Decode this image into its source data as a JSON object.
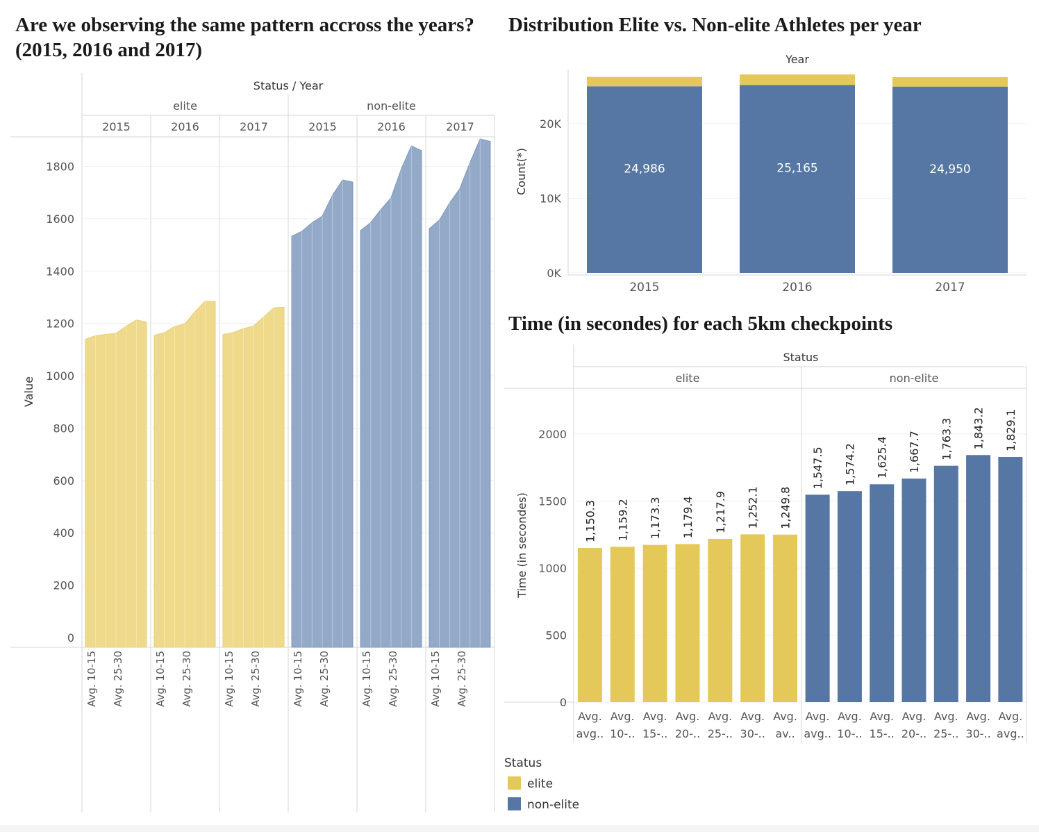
{
  "titles": {
    "area": "Are we observing the same pattern accross the years? (2015, 2016 and 2017)",
    "stacked": "Distribution Elite vs. Non-elite Athletes per year",
    "bars": "Time (in secondes) for each 5km checkpoints"
  },
  "colors": {
    "elite": "#e4c95a",
    "non_elite": "#5677a4",
    "elite_area": "#efd98a",
    "non_elite_area": "#93a9c8"
  },
  "legend": {
    "title": "Status",
    "items": [
      {
        "label": "elite",
        "color": "#e4c95a"
      },
      {
        "label": "non-elite",
        "color": "#5677a4"
      }
    ]
  },
  "chart_data": [
    {
      "type": "area",
      "header": "Status / Year",
      "ylabel": "Value",
      "ylim": [
        0,
        1950
      ],
      "yticks": [
        0,
        200,
        400,
        600,
        800,
        1000,
        1200,
        1400,
        1600,
        1800
      ],
      "x_tick_labels": [
        "Avg. 10-15",
        "Avg. 25-30"
      ],
      "panels": [
        {
          "status": "elite",
          "year": "2015",
          "values": [
            1140,
            1153,
            1158,
            1162,
            1190,
            1213,
            1205
          ]
        },
        {
          "status": "elite",
          "year": "2016",
          "values": [
            1155,
            1165,
            1188,
            1198,
            1245,
            1285,
            1285
          ]
        },
        {
          "status": "elite",
          "year": "2017",
          "values": [
            1158,
            1165,
            1180,
            1190,
            1225,
            1260,
            1262
          ]
        },
        {
          "status": "non-elite",
          "year": "2015",
          "values": [
            1533,
            1552,
            1585,
            1610,
            1690,
            1748,
            1740
          ]
        },
        {
          "status": "non-elite",
          "year": "2016",
          "values": [
            1555,
            1585,
            1635,
            1680,
            1790,
            1878,
            1860
          ]
        },
        {
          "status": "non-elite",
          "year": "2017",
          "values": [
            1562,
            1595,
            1660,
            1715,
            1815,
            1905,
            1895
          ]
        }
      ]
    },
    {
      "type": "bar",
      "stacked": true,
      "header": "Year",
      "ylabel": "Count(*)",
      "categories": [
        "2015",
        "2016",
        "2017"
      ],
      "ylim": [
        0,
        26500
      ],
      "yticks": [
        0,
        10000,
        20000
      ],
      "ytick_labels": [
        "0K",
        "10K",
        "20K"
      ],
      "series": [
        {
          "name": "non-elite",
          "values": [
            24986,
            25165,
            24950
          ],
          "labels": [
            "24,986",
            "25,165",
            "24,950"
          ]
        },
        {
          "name": "elite",
          "values": [
            1260,
            1410,
            1270
          ]
        }
      ]
    },
    {
      "type": "bar",
      "header": "Status",
      "ylabel": "Time (in secondes)",
      "ylim": [
        0,
        2350
      ],
      "yticks": [
        0,
        500,
        1000,
        1500,
        2000
      ],
      "groups": [
        {
          "status": "elite",
          "categories": [
            "Avg. avg..",
            "Avg. 10-..",
            "Avg. 15-..",
            "Avg. 20-..",
            "Avg. 25-..",
            "Avg. 30-..",
            "Avg. av.."
          ],
          "values": [
            1150.3,
            1159.2,
            1173.3,
            1179.4,
            1217.9,
            1252.1,
            1249.8
          ],
          "labels": [
            "1,150.3",
            "1,159.2",
            "1,173.3",
            "1,179.4",
            "1,217.9",
            "1,252.1",
            "1,249.8"
          ]
        },
        {
          "status": "non-elite",
          "categories": [
            "Avg. avg..",
            "Avg. 10-..",
            "Avg. 15-..",
            "Avg. 20-..",
            "Avg. 25-..",
            "Avg. 30-..",
            "Avg. avg.."
          ],
          "values": [
            1547.5,
            1574.2,
            1625.4,
            1667.7,
            1763.3,
            1843.2,
            1829.1
          ],
          "labels": [
            "1,547.5",
            "1,574.2",
            "1,625.4",
            "1,667.7",
            "1,763.3",
            "1,843.2",
            "1,829.1"
          ]
        }
      ]
    }
  ]
}
